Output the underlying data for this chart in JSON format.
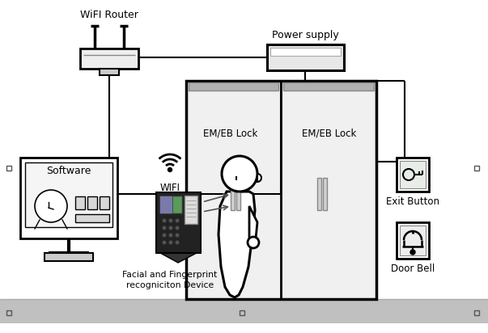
{
  "bg_color": "#ffffff",
  "floor_color": "#c8c8c8",
  "labels": {
    "wifi_router": "WiFI Router",
    "power_supply": "Power supply",
    "em_lock_left": "EM/EB Lock",
    "em_lock_right": "EM/EB Lock",
    "software": "Software",
    "wifi": "WIFI",
    "device": "Facial and Fingerprint\nrecogniciton Device",
    "exit_button": "Exit Button",
    "door_bell": "Door Bell"
  },
  "figsize": [
    6.03,
    4.12
  ],
  "dpi": 100
}
